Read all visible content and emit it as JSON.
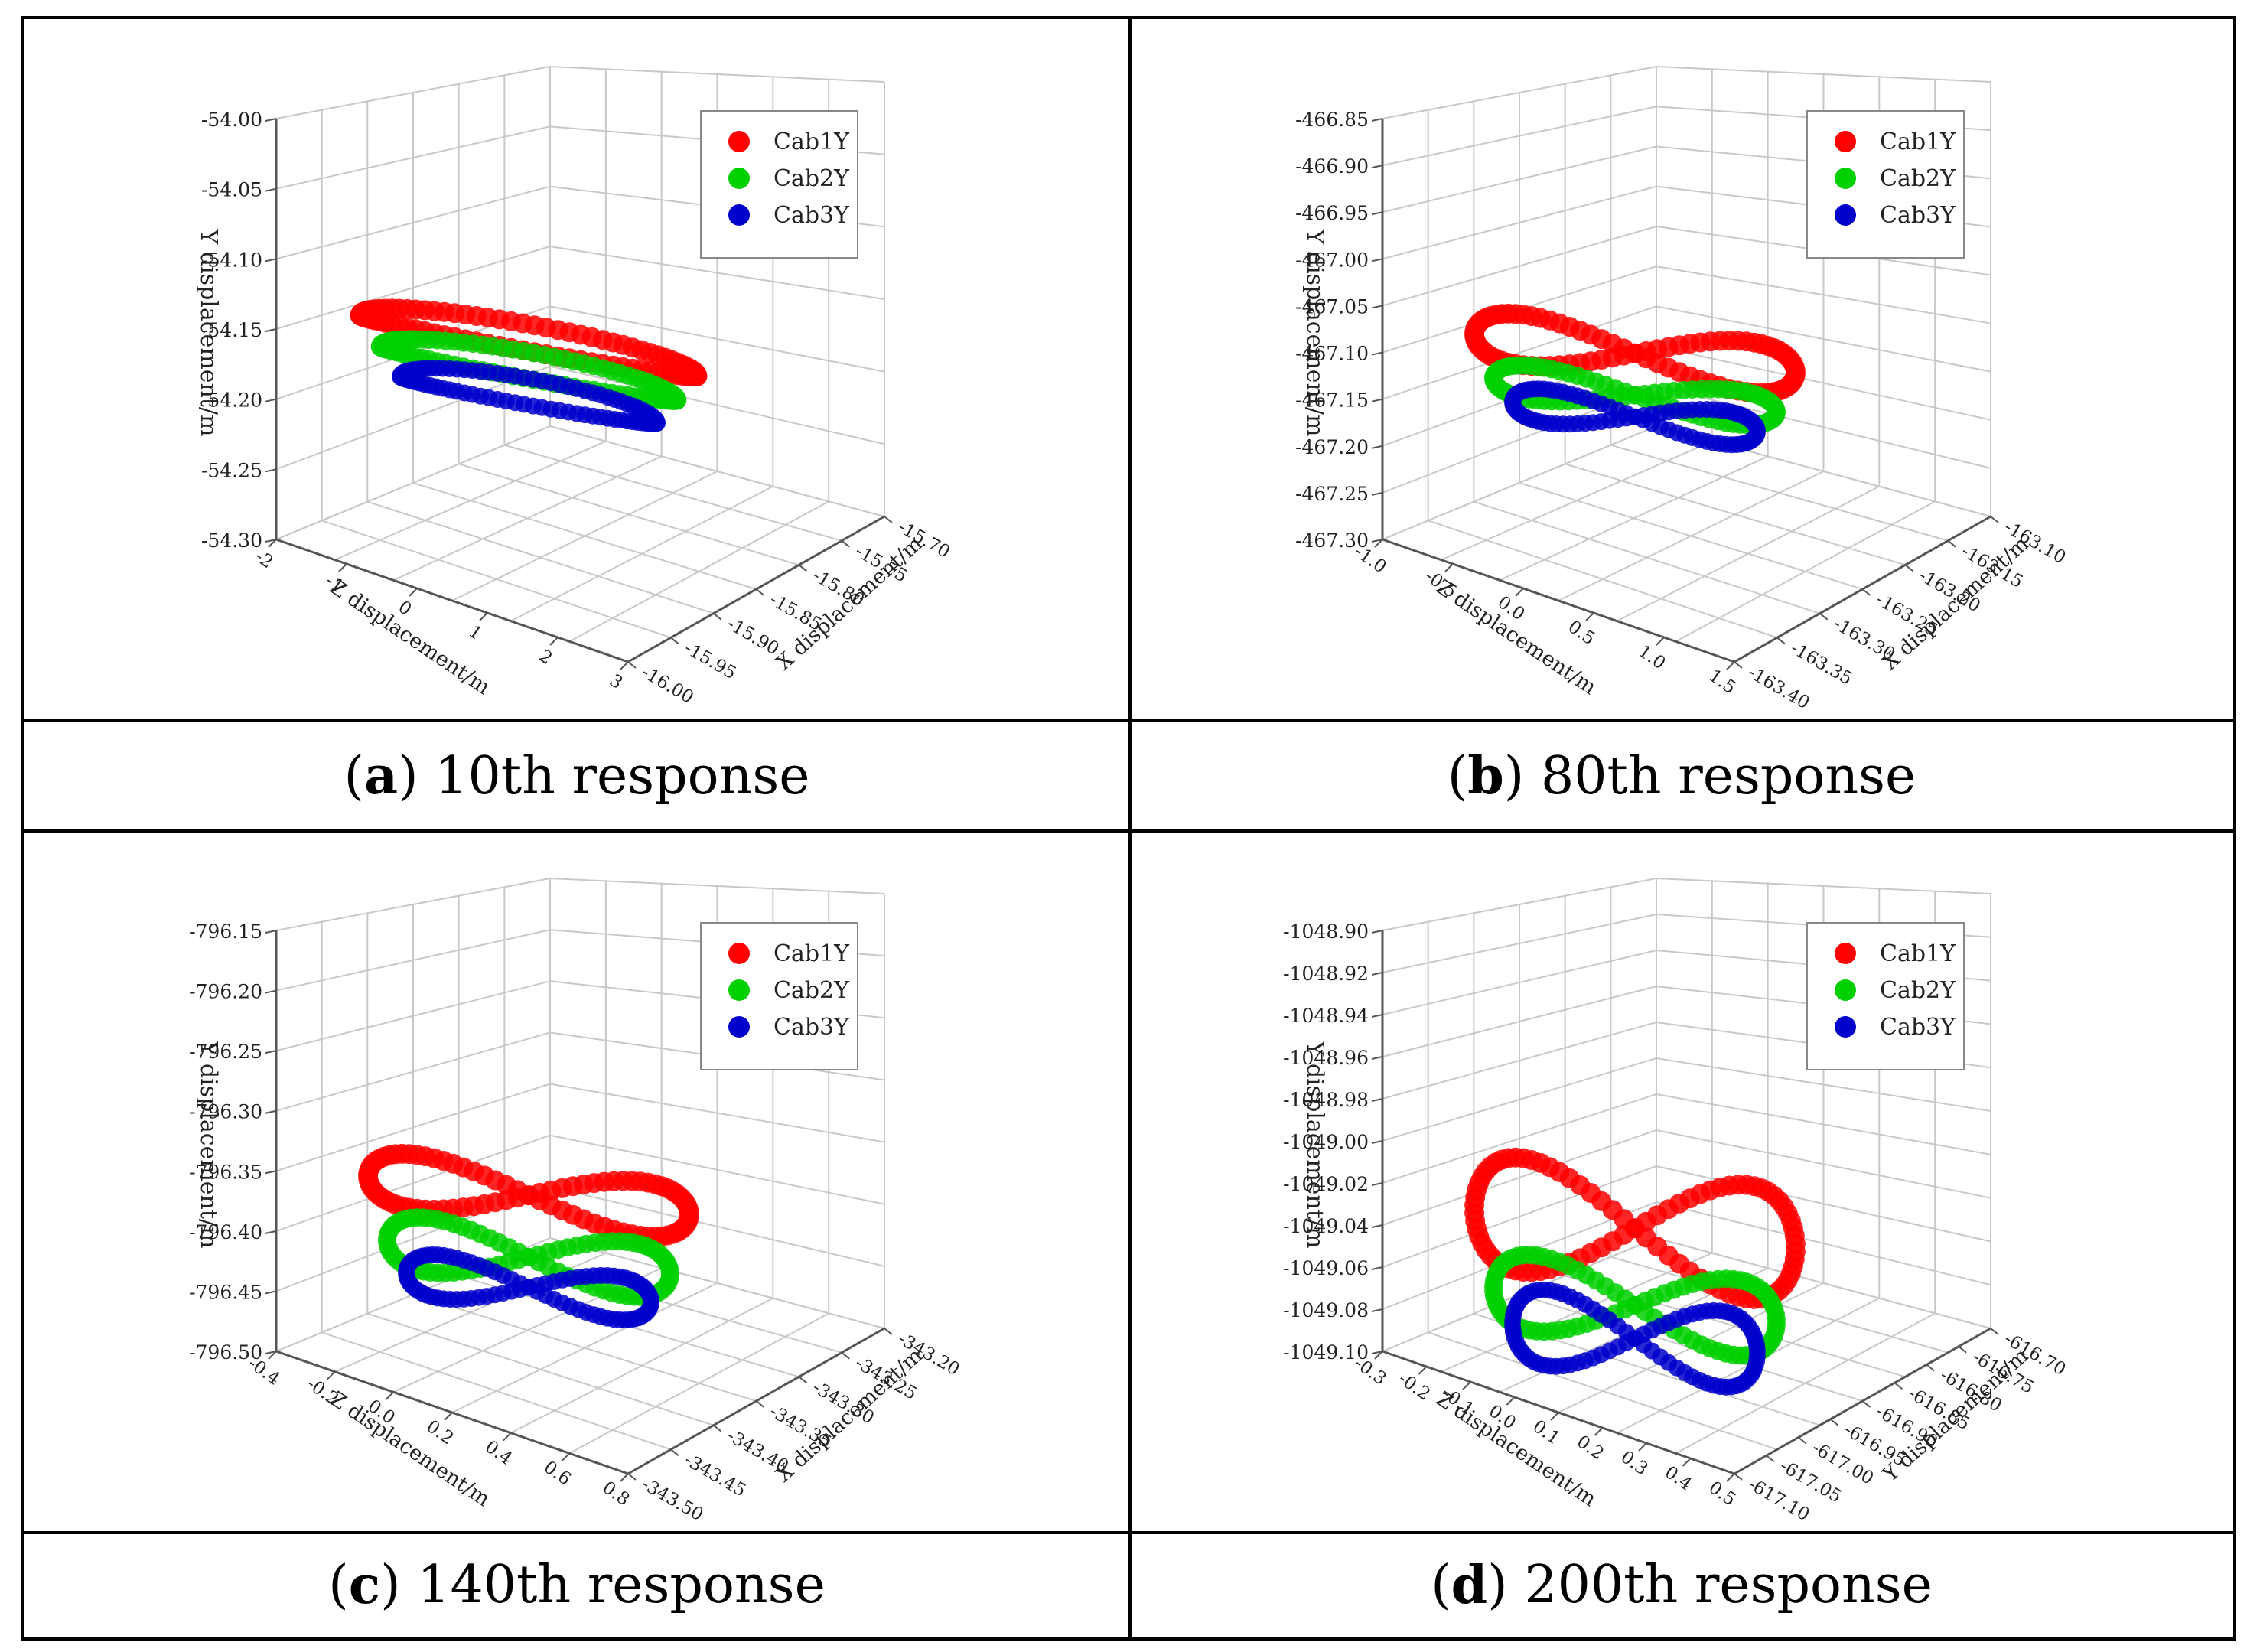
{
  "colors": {
    "cab1": "#ff0000",
    "cab2": "#00d000",
    "cab3": "#0000cc"
  },
  "legend": [
    "Cab1Y",
    "Cab2Y",
    "Cab3Y"
  ],
  "chart_data": [
    {
      "id": "a",
      "type": "scatter3d",
      "caption": {
        "letter": "a",
        "text": "10th response"
      },
      "ylabel": "Y displacement/m",
      "zlabel": "Z displacement/m",
      "xlabel": "X displacement/m",
      "y_ticks": [
        "-54.00",
        "-54.05",
        "-54.10",
        "-54.15",
        "-54.20",
        "-54.25",
        "-54.30"
      ],
      "z_ticks": [
        "-2",
        "-1",
        "0",
        "1",
        "2",
        "3"
      ],
      "x_ticks": [
        "-15.70",
        "-15.75",
        "-15.80",
        "-15.85",
        "-15.90",
        "-15.95",
        "-16.00"
      ],
      "ylim": [
        -54.3,
        -54.0
      ],
      "series": [
        {
          "name": "Cab1Y",
          "shape": "arc",
          "y_range": [
            -54.12,
            -54.1
          ]
        },
        {
          "name": "Cab2Y",
          "shape": "arc",
          "y_range": [
            -54.13,
            -54.11
          ]
        },
        {
          "name": "Cab3Y",
          "shape": "arc",
          "y_range": [
            -54.14,
            -54.12
          ]
        }
      ]
    },
    {
      "id": "b",
      "type": "scatter3d",
      "caption": {
        "letter": "b",
        "text": "80th response"
      },
      "ylabel": "Y displacement/m",
      "zlabel": "Z displacement/m",
      "xlabel": "X displacement/m",
      "y_ticks": [
        "-466.85",
        "-466.90",
        "-466.95",
        "-467.00",
        "-467.05",
        "-467.10",
        "-467.15",
        "-467.20",
        "-467.25",
        "-467.30"
      ],
      "z_ticks": [
        "-1.0",
        "-0.5",
        "0.0",
        "0.5",
        "1.0",
        "1.5"
      ],
      "x_ticks": [
        "-163.10",
        "-163.15",
        "-163.20",
        "-163.25",
        "-163.30",
        "-163.35",
        "-163.40"
      ],
      "ylim": [
        -467.3,
        -466.85
      ],
      "series": [
        {
          "name": "Cab1Y",
          "shape": "figure8",
          "y_range": [
            -467.06,
            -467.0
          ]
        },
        {
          "name": "Cab2Y",
          "shape": "figure8",
          "y_range": [
            -467.08,
            -467.04
          ]
        },
        {
          "name": "Cab3Y",
          "shape": "figure8",
          "y_range": [
            -467.09,
            -467.05
          ]
        }
      ]
    },
    {
      "id": "c",
      "type": "scatter3d",
      "caption": {
        "letter": "c",
        "text": "140th response"
      },
      "ylabel": "Y displacement/m",
      "zlabel": "Z displacement/m",
      "xlabel": "X displacement/m",
      "y_ticks": [
        "-796.15",
        "-796.20",
        "-796.25",
        "-796.30",
        "-796.35",
        "-796.40",
        "-796.45",
        "-796.50"
      ],
      "z_ticks": [
        "-0.4",
        "-0.2",
        "0.0",
        "0.2",
        "0.4",
        "0.6",
        "0.8"
      ],
      "x_ticks": [
        "-343.20",
        "-343.25",
        "-343.30",
        "-343.35",
        "-343.40",
        "-343.45",
        "-343.50"
      ],
      "ylim": [
        -796.5,
        -796.15
      ],
      "series": [
        {
          "name": "Cab1Y",
          "shape": "figure8",
          "y_range": [
            -796.34,
            -796.29
          ]
        },
        {
          "name": "Cab2Y",
          "shape": "figure8",
          "y_range": [
            -796.38,
            -796.33
          ]
        },
        {
          "name": "Cab3Y",
          "shape": "figure8",
          "y_range": [
            -796.39,
            -796.35
          ]
        }
      ]
    },
    {
      "id": "d",
      "type": "scatter3d",
      "caption": {
        "letter": "d",
        "text": "200th response"
      },
      "ylabel": "Y displacement/m",
      "zlabel": "Z displacement/m",
      "xlabel": "Y displacement/m",
      "y_ticks": [
        "-1048.90",
        "-1048.92",
        "-1048.94",
        "-1048.96",
        "-1048.98",
        "-1049.00",
        "-1049.02",
        "-1049.04",
        "-1049.06",
        "-1049.08",
        "-1049.10"
      ],
      "z_ticks": [
        "-0.3",
        "-0.2",
        "-0.1",
        "0.0",
        "0.1",
        "0.2",
        "0.3",
        "0.4",
        "0.5"
      ],
      "x_ticks": [
        "-616.70",
        "-616.75",
        "-616.80",
        "-616.85",
        "-616.90",
        "-616.95",
        "-617.00",
        "-617.05",
        "-617.10"
      ],
      "ylim": [
        -1049.1,
        -1048.9
      ],
      "series": [
        {
          "name": "Cab1Y",
          "shape": "figure8",
          "y_range": [
            -1049.04,
            -1048.98
          ]
        },
        {
          "name": "Cab2Y",
          "shape": "figure8",
          "y_range": [
            -1049.06,
            -1049.02
          ]
        },
        {
          "name": "Cab3Y",
          "shape": "figure8",
          "y_range": [
            -1049.07,
            -1049.03
          ]
        }
      ]
    }
  ]
}
